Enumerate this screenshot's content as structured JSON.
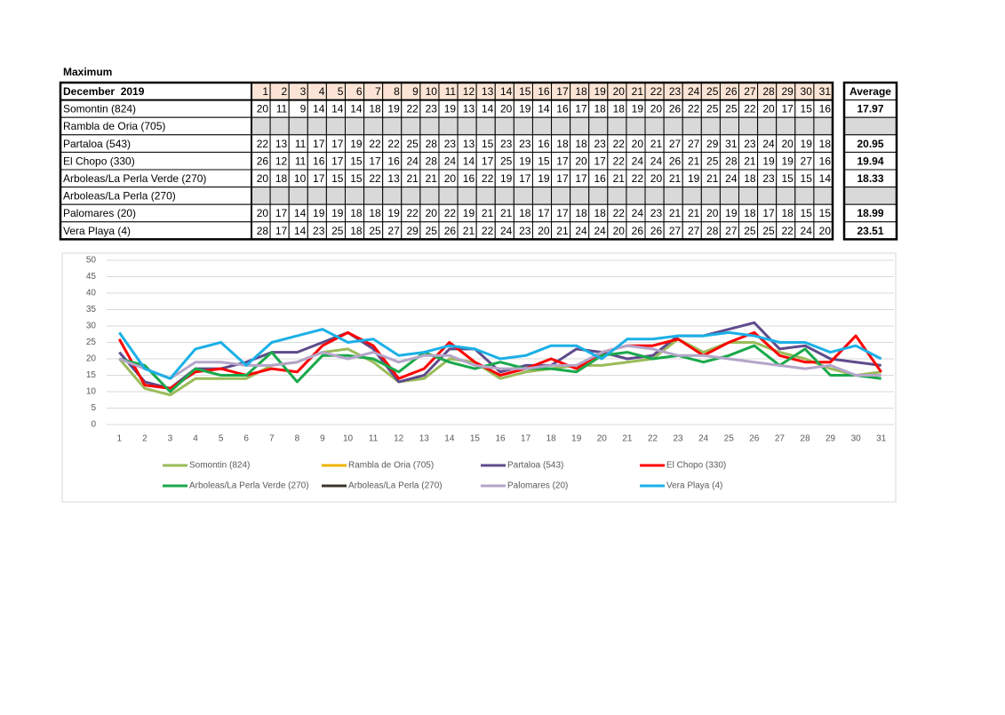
{
  "title": "Maximum",
  "table": {
    "header_label": "December  2019",
    "average_label": "Average",
    "averages": [
      17.97,
      null,
      20.95,
      19.94,
      18.33,
      null,
      18.99,
      23.51
    ]
  },
  "chart_data": {
    "type": "line",
    "categories": [
      1,
      2,
      3,
      4,
      5,
      6,
      7,
      8,
      9,
      10,
      11,
      12,
      13,
      14,
      15,
      16,
      17,
      18,
      19,
      20,
      21,
      22,
      23,
      24,
      25,
      26,
      27,
      28,
      29,
      30,
      31
    ],
    "ylim": [
      0,
      50
    ],
    "yticks": [
      0,
      5,
      10,
      15,
      20,
      25,
      30,
      35,
      40,
      45,
      50
    ],
    "grid": true,
    "series": [
      {
        "name": "Somontin (824)",
        "color": "#9bbb59",
        "values": [
          20,
          11,
          9,
          14,
          14,
          14,
          18,
          19,
          22,
          23,
          19,
          13,
          14,
          20,
          19,
          14,
          16,
          17,
          18,
          18,
          19,
          20,
          26,
          22,
          25,
          25,
          22,
          20,
          17,
          15,
          16
        ]
      },
      {
        "name": "Rambla de Oria (705)",
        "color": "#f0b400",
        "values": [
          null,
          null,
          null,
          null,
          null,
          null,
          null,
          null,
          null,
          null,
          null,
          null,
          null,
          null,
          null,
          null,
          null,
          null,
          null,
          null,
          null,
          null,
          null,
          null,
          null,
          null,
          null,
          null,
          null,
          null,
          null
        ]
      },
      {
        "name": "Partaloa (543)",
        "color": "#5f4b8b",
        "values": [
          22,
          13,
          11,
          17,
          17,
          19,
          22,
          22,
          25,
          28,
          23,
          13,
          15,
          23,
          23,
          16,
          18,
          18,
          23,
          22,
          20,
          21,
          27,
          27,
          29,
          31,
          23,
          24,
          20,
          19,
          18
        ]
      },
      {
        "name": "El Chopo (330)",
        "color": "#ff0000",
        "values": [
          26,
          12,
          11,
          16,
          17,
          15,
          17,
          16,
          24,
          28,
          24,
          14,
          17,
          25,
          19,
          15,
          17,
          20,
          17,
          22,
          24,
          24,
          26,
          21,
          25,
          28,
          21,
          19,
          19,
          27,
          16
        ]
      },
      {
        "name": "Arboleas/La Perla Verde (270)",
        "color": "#1aa84b",
        "values": [
          20,
          18,
          10,
          17,
          15,
          15,
          22,
          13,
          21,
          21,
          20,
          16,
          22,
          19,
          17,
          19,
          17,
          17,
          16,
          21,
          22,
          20,
          21,
          19,
          21,
          24,
          18,
          23,
          15,
          15,
          14
        ]
      },
      {
        "name": "Arboleas/La Perla (270)",
        "color": "#3b3427",
        "values": [
          null,
          null,
          null,
          null,
          null,
          null,
          null,
          null,
          null,
          null,
          null,
          null,
          null,
          null,
          null,
          null,
          null,
          null,
          null,
          null,
          null,
          null,
          null,
          null,
          null,
          null,
          null,
          null,
          null,
          null,
          null
        ]
      },
      {
        "name": "Palomares (20)",
        "color": "#b4a5c9",
        "values": [
          20,
          17,
          14,
          19,
          19,
          18,
          18,
          19,
          22,
          20,
          22,
          19,
          21,
          21,
          18,
          17,
          17,
          18,
          18,
          22,
          24,
          23,
          21,
          21,
          20,
          19,
          18,
          17,
          18,
          15,
          15
        ]
      },
      {
        "name": "Vera Playa (4)",
        "color": "#1bb0e6",
        "values": [
          28,
          17,
          14,
          23,
          25,
          18,
          25,
          27,
          29,
          25,
          26,
          21,
          22,
          24,
          23,
          20,
          21,
          24,
          24,
          20,
          26,
          26,
          27,
          27,
          28,
          27,
          25,
          25,
          22,
          24,
          20
        ]
      }
    ]
  }
}
